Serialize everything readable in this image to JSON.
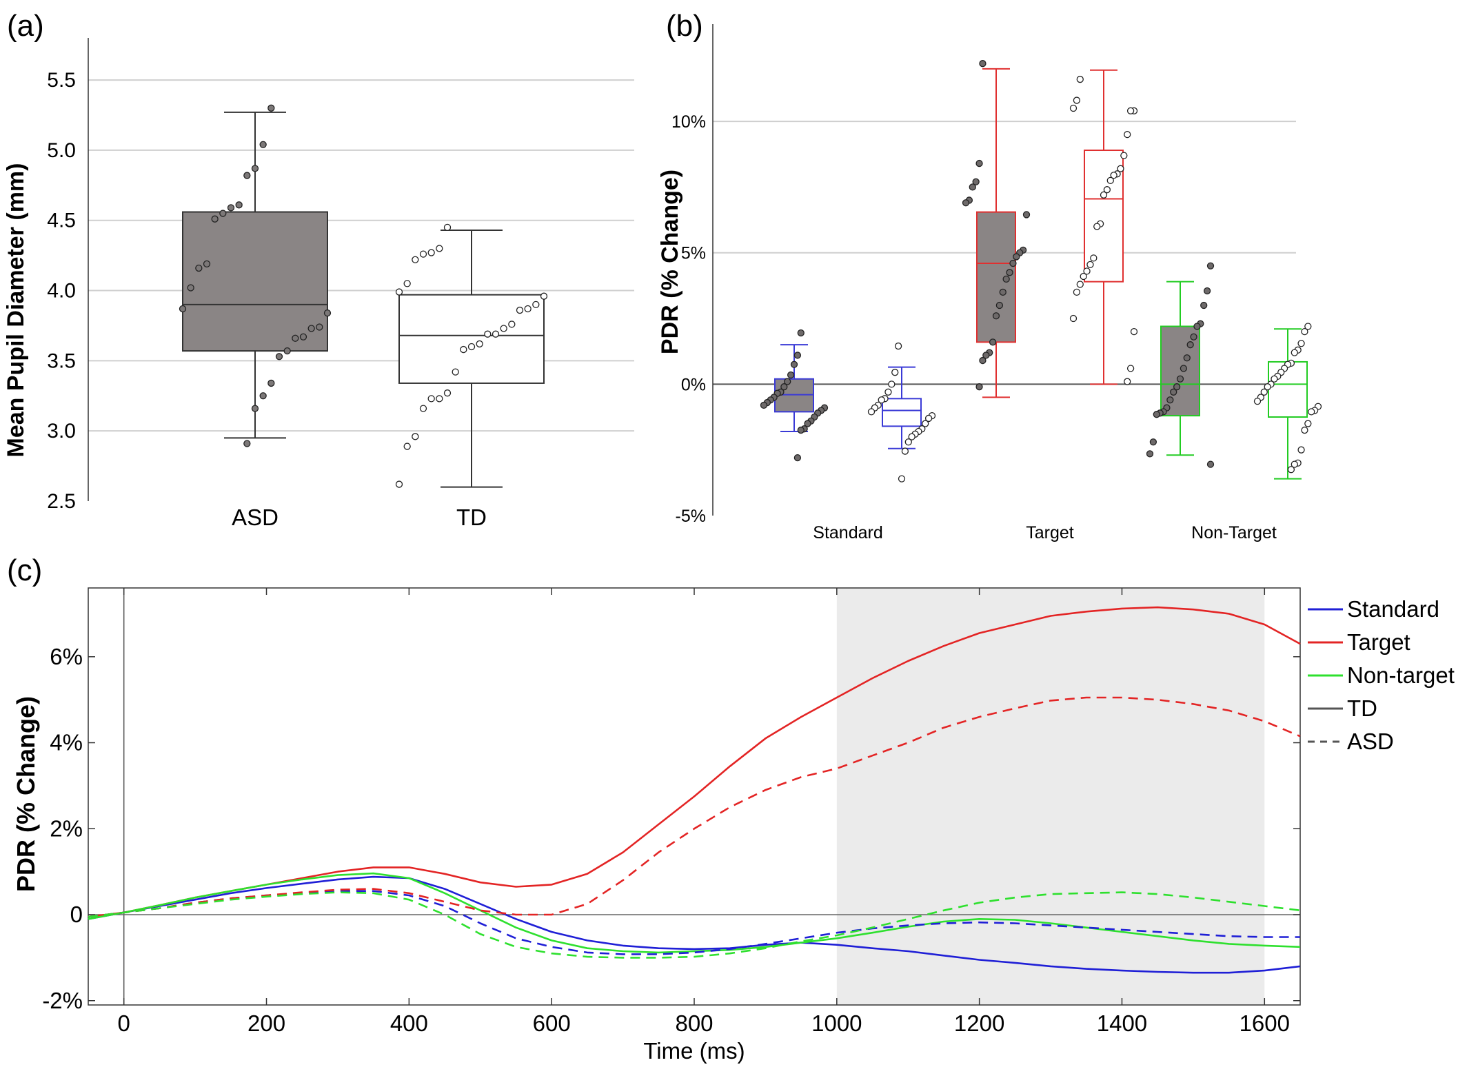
{
  "chart_data": [
    {
      "panel_label": "(a)",
      "type": "box",
      "title": "",
      "xlabel": "",
      "ylabel": "Mean Pupil Diameter (mm)",
      "ylim": [
        2.5,
        5.8
      ],
      "yticks": [
        "2.5",
        "3.0",
        "3.5",
        "4.0",
        "4.5",
        "5.0",
        "5.5"
      ],
      "grid": "horizontal",
      "categories": [
        "ASD",
        "TD"
      ],
      "boxes": [
        {
          "name": "ASD",
          "fill": "#8a8585",
          "min": 2.95,
          "q1": 3.57,
          "median": 3.9,
          "q3": 4.56,
          "max": 5.27
        },
        {
          "name": "TD",
          "fill": "#ffffff",
          "min": 2.6,
          "q1": 3.34,
          "median": 3.68,
          "q3": 3.97,
          "max": 4.43
        }
      ],
      "points": [
        {
          "group": "ASD",
          "values": [
            5.3,
            5.04,
            4.87,
            4.82,
            4.61,
            4.59,
            4.55,
            4.51,
            4.19,
            4.16,
            4.02,
            3.87,
            3.84,
            3.74,
            3.73,
            3.67,
            3.66,
            3.57,
            3.53,
            3.34,
            3.25,
            3.16,
            2.91
          ]
        },
        {
          "group": "TD",
          "values": [
            4.45,
            4.3,
            4.27,
            4.26,
            4.22,
            4.05,
            3.99,
            3.96,
            3.9,
            3.87,
            3.86,
            3.76,
            3.73,
            3.69,
            3.69,
            3.62,
            3.6,
            3.58,
            3.42,
            3.27,
            3.23,
            3.23,
            3.16,
            2.96,
            2.89,
            2.62
          ]
        }
      ]
    },
    {
      "panel_label": "(b)",
      "type": "box",
      "title": "",
      "xlabel": "",
      "ylabel": "PDR (% Change)",
      "ylim": [
        -5,
        13.7
      ],
      "yticks": [
        "-5%",
        "0%",
        "5%",
        "10%"
      ],
      "grid": "horizontal",
      "categories": [
        "Standard",
        "Target",
        "Non-Target"
      ],
      "boxes": [
        {
          "category": "Standard",
          "group": "ASD",
          "color": "#3a3ad6",
          "fill": "#8a8585",
          "min": -1.8,
          "q1": -1.05,
          "median": -0.4,
          "q3": 0.2,
          "max": 1.5
        },
        {
          "category": "Standard",
          "group": "TD",
          "color": "#3a3ad6",
          "fill": "#ffffff",
          "min": -2.45,
          "q1": -1.6,
          "median": -1.0,
          "q3": -0.55,
          "max": 0.65
        },
        {
          "category": "Target",
          "group": "ASD",
          "color": "#e03030",
          "fill": "#8a8585",
          "min": -0.5,
          "q1": 1.6,
          "median": 4.6,
          "q3": 6.55,
          "max": 12.0
        },
        {
          "category": "Target",
          "group": "TD",
          "color": "#e03030",
          "fill": "#ffffff",
          "min": 0.0,
          "q1": 3.9,
          "median": 7.05,
          "q3": 8.9,
          "max": 11.95
        },
        {
          "category": "Non-Target",
          "group": "ASD",
          "color": "#22cc22",
          "fill": "#8a8585",
          "min": -2.7,
          "q1": -1.2,
          "median": 0.0,
          "q3": 2.2,
          "max": 3.9
        },
        {
          "category": "Non-Target",
          "group": "TD",
          "color": "#22cc22",
          "fill": "#ffffff",
          "min": -3.6,
          "q1": -1.25,
          "median": 0.0,
          "q3": 0.85,
          "max": 2.1
        }
      ],
      "points": [
        {
          "category": "Standard",
          "group": "ASD",
          "values": [
            1.95,
            1.1,
            0.75,
            0.35,
            0.1,
            -0.1,
            -0.3,
            -0.35,
            -0.5,
            -0.6,
            -0.7,
            -0.8,
            -0.9,
            -1.0,
            -1.1,
            -1.25,
            -1.4,
            -1.5,
            -1.7,
            -1.75,
            -2.8
          ]
        },
        {
          "category": "Standard",
          "group": "TD",
          "values": [
            1.45,
            0.45,
            0.0,
            -0.3,
            -0.55,
            -0.6,
            -0.8,
            -0.9,
            -1.05,
            -1.2,
            -1.3,
            -1.5,
            -1.7,
            -1.8,
            -1.9,
            -2.0,
            -2.2,
            -2.55,
            -3.6
          ]
        },
        {
          "category": "Target",
          "group": "ASD",
          "values": [
            12.2,
            8.4,
            7.7,
            7.5,
            7.0,
            6.9,
            6.45,
            5.1,
            5.0,
            4.85,
            4.6,
            4.25,
            4.0,
            3.5,
            3.0,
            2.6,
            1.6,
            1.2,
            1.1,
            0.9,
            -0.1
          ]
        },
        {
          "category": "Target",
          "group": "TD",
          "values": [
            11.6,
            10.8,
            10.5,
            10.4,
            10.4,
            9.5,
            8.7,
            8.2,
            8.0,
            7.95,
            7.75,
            7.4,
            7.2,
            6.1,
            6.0,
            4.8,
            4.55,
            4.3,
            4.1,
            3.8,
            3.5,
            2.5,
            2.0,
            0.6,
            0.1
          ]
        },
        {
          "category": "Non-Target",
          "group": "ASD",
          "values": [
            4.5,
            3.55,
            3.0,
            2.3,
            2.2,
            1.8,
            1.5,
            1.0,
            0.6,
            0.2,
            -0.1,
            -0.3,
            -0.6,
            -0.9,
            -1.05,
            -1.1,
            -1.15,
            -2.2,
            -2.65,
            -3.05
          ]
        },
        {
          "category": "Non-Target",
          "group": "TD",
          "values": [
            2.2,
            2.0,
            1.55,
            1.3,
            1.2,
            0.8,
            0.75,
            0.6,
            0.45,
            0.3,
            0.2,
            0.0,
            -0.1,
            -0.3,
            -0.5,
            -0.65,
            -0.85,
            -1.0,
            -1.05,
            -1.5,
            -1.75,
            -2.5,
            -3.0,
            -3.05,
            -3.25
          ]
        }
      ]
    },
    {
      "panel_label": "(c)",
      "type": "line",
      "title": "",
      "xlabel": "Time (ms)",
      "ylabel": "PDR (% Change)",
      "xlim": [
        -50,
        1650
      ],
      "ylim": [
        -2.1,
        7.6
      ],
      "xticks": [
        "0",
        "200",
        "400",
        "600",
        "800",
        "1000",
        "1200",
        "1400",
        "1600"
      ],
      "yticks": [
        "-2%",
        "0",
        "2%",
        "4%",
        "6%"
      ],
      "shaded_region": [
        1000,
        1600
      ],
      "legend_placement": "right",
      "legend": [
        {
          "label": "Standard",
          "color": "#1f1fd6",
          "dash": false
        },
        {
          "label": "Target",
          "color": "#e32424",
          "dash": false
        },
        {
          "label": "Non-target",
          "color": "#2ee02e",
          "dash": false
        },
        {
          "label": "TD",
          "color": "#555555",
          "dash": false
        },
        {
          "label": "ASD",
          "color": "#555555",
          "dash": true
        }
      ],
      "x": [
        -50,
        0,
        50,
        100,
        150,
        200,
        250,
        300,
        350,
        400,
        450,
        500,
        550,
        600,
        650,
        700,
        750,
        800,
        850,
        900,
        950,
        1000,
        1050,
        1100,
        1150,
        1200,
        1250,
        1300,
        1350,
        1400,
        1450,
        1500,
        1550,
        1600,
        1650
      ],
      "series": [
        {
          "name": "Standard",
          "group": "TD",
          "color": "#1f1fd6",
          "dash": false,
          "values": [
            -0.1,
            0.05,
            0.2,
            0.35,
            0.5,
            0.62,
            0.72,
            0.82,
            0.88,
            0.85,
            0.6,
            0.25,
            -0.1,
            -0.4,
            -0.6,
            -0.72,
            -0.78,
            -0.8,
            -0.78,
            -0.7,
            -0.65,
            -0.7,
            -0.78,
            -0.85,
            -0.95,
            -1.05,
            -1.12,
            -1.2,
            -1.26,
            -1.3,
            -1.33,
            -1.35,
            -1.35,
            -1.3,
            -1.2
          ]
        },
        {
          "name": "Target",
          "group": "TD",
          "color": "#e32424",
          "dash": false,
          "values": [
            -0.05,
            0.05,
            0.22,
            0.4,
            0.55,
            0.7,
            0.85,
            1.0,
            1.1,
            1.1,
            0.95,
            0.75,
            0.65,
            0.7,
            0.95,
            1.45,
            2.1,
            2.75,
            3.45,
            4.1,
            4.6,
            5.05,
            5.5,
            5.9,
            6.25,
            6.55,
            6.75,
            6.95,
            7.05,
            7.12,
            7.15,
            7.1,
            7.0,
            6.75,
            6.3
          ]
        },
        {
          "name": "Non-target",
          "group": "TD",
          "color": "#2ee02e",
          "dash": false,
          "values": [
            -0.1,
            0.05,
            0.22,
            0.4,
            0.55,
            0.7,
            0.82,
            0.92,
            0.96,
            0.85,
            0.5,
            0.1,
            -0.3,
            -0.6,
            -0.78,
            -0.85,
            -0.88,
            -0.85,
            -0.82,
            -0.75,
            -0.65,
            -0.55,
            -0.42,
            -0.28,
            -0.16,
            -0.1,
            -0.12,
            -0.2,
            -0.3,
            -0.4,
            -0.5,
            -0.6,
            -0.68,
            -0.72,
            -0.75
          ]
        },
        {
          "name": "Standard",
          "group": "ASD",
          "color": "#1f1fd6",
          "dash": true,
          "values": [
            -0.05,
            0.05,
            0.15,
            0.28,
            0.38,
            0.45,
            0.5,
            0.55,
            0.55,
            0.45,
            0.2,
            -0.2,
            -0.55,
            -0.75,
            -0.88,
            -0.92,
            -0.92,
            -0.88,
            -0.8,
            -0.68,
            -0.55,
            -0.42,
            -0.32,
            -0.25,
            -0.2,
            -0.18,
            -0.2,
            -0.25,
            -0.3,
            -0.35,
            -0.4,
            -0.45,
            -0.5,
            -0.52,
            -0.52
          ]
        },
        {
          "name": "Target",
          "group": "ASD",
          "color": "#e32424",
          "dash": true,
          "values": [
            -0.05,
            0.05,
            0.15,
            0.28,
            0.38,
            0.45,
            0.52,
            0.58,
            0.6,
            0.5,
            0.3,
            0.1,
            0.0,
            0.0,
            0.25,
            0.8,
            1.45,
            2.0,
            2.5,
            2.9,
            3.2,
            3.4,
            3.7,
            4.0,
            4.35,
            4.6,
            4.8,
            4.98,
            5.05,
            5.05,
            5.0,
            4.9,
            4.75,
            4.5,
            4.15
          ]
        },
        {
          "name": "Non-target",
          "group": "ASD",
          "color": "#2ee02e",
          "dash": true,
          "values": [
            -0.05,
            0.05,
            0.15,
            0.25,
            0.35,
            0.42,
            0.48,
            0.52,
            0.5,
            0.35,
            0.0,
            -0.45,
            -0.75,
            -0.9,
            -0.98,
            -1.0,
            -1.0,
            -0.98,
            -0.9,
            -0.78,
            -0.62,
            -0.48,
            -0.3,
            -0.1,
            0.1,
            0.28,
            0.4,
            0.48,
            0.5,
            0.52,
            0.48,
            0.4,
            0.3,
            0.2,
            0.1
          ]
        }
      ]
    }
  ]
}
